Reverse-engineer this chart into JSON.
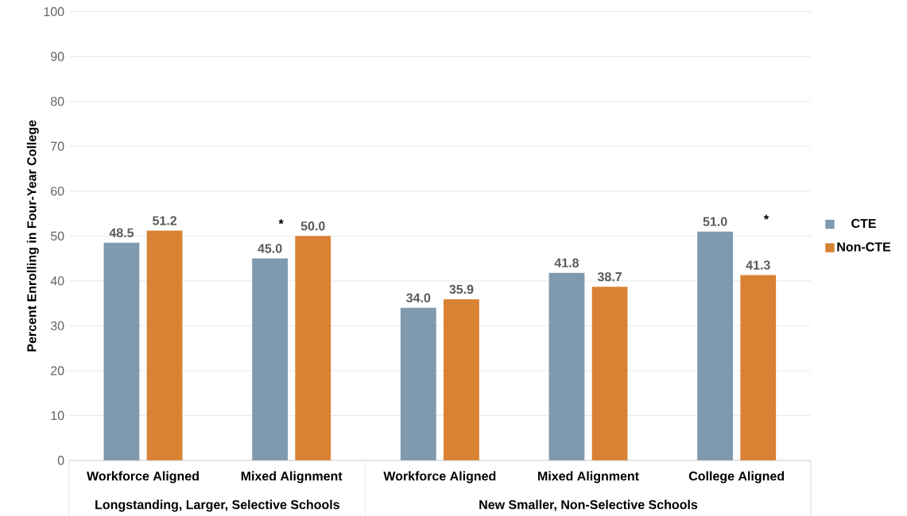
{
  "chart_data": {
    "type": "bar",
    "ylabel": "Percent Enrolling in Four-Year College",
    "categories": [
      "Workforce Aligned",
      "Mixed Alignment",
      "Workforce Aligned",
      "Mixed Alignment",
      "College Aligned"
    ],
    "series": [
      {
        "name": "CTE",
        "color": "#7f99ae",
        "values": [
          48.5,
          45.0,
          34.0,
          41.8,
          51.0
        ],
        "value_labels": [
          "48.5",
          "45.0",
          "34.0",
          "41.8",
          "51.0"
        ]
      },
      {
        "name": "Non-CTE",
        "color": "#d98233",
        "values": [
          51.2,
          50.0,
          35.9,
          38.7,
          41.3
        ],
        "value_labels": [
          "51.2",
          "50.0",
          "35.9",
          "38.7",
          "41.3"
        ]
      }
    ],
    "ylim": [
      0,
      100
    ],
    "yticks": [
      0,
      10,
      20,
      30,
      40,
      50,
      60,
      70,
      80,
      90,
      100
    ],
    "grid": "y",
    "legend": "right",
    "annotations": [
      "Longstanding, Larger, Selective Schools",
      "New Smaller, Non-Selective Schools",
      "*",
      "*"
    ]
  }
}
